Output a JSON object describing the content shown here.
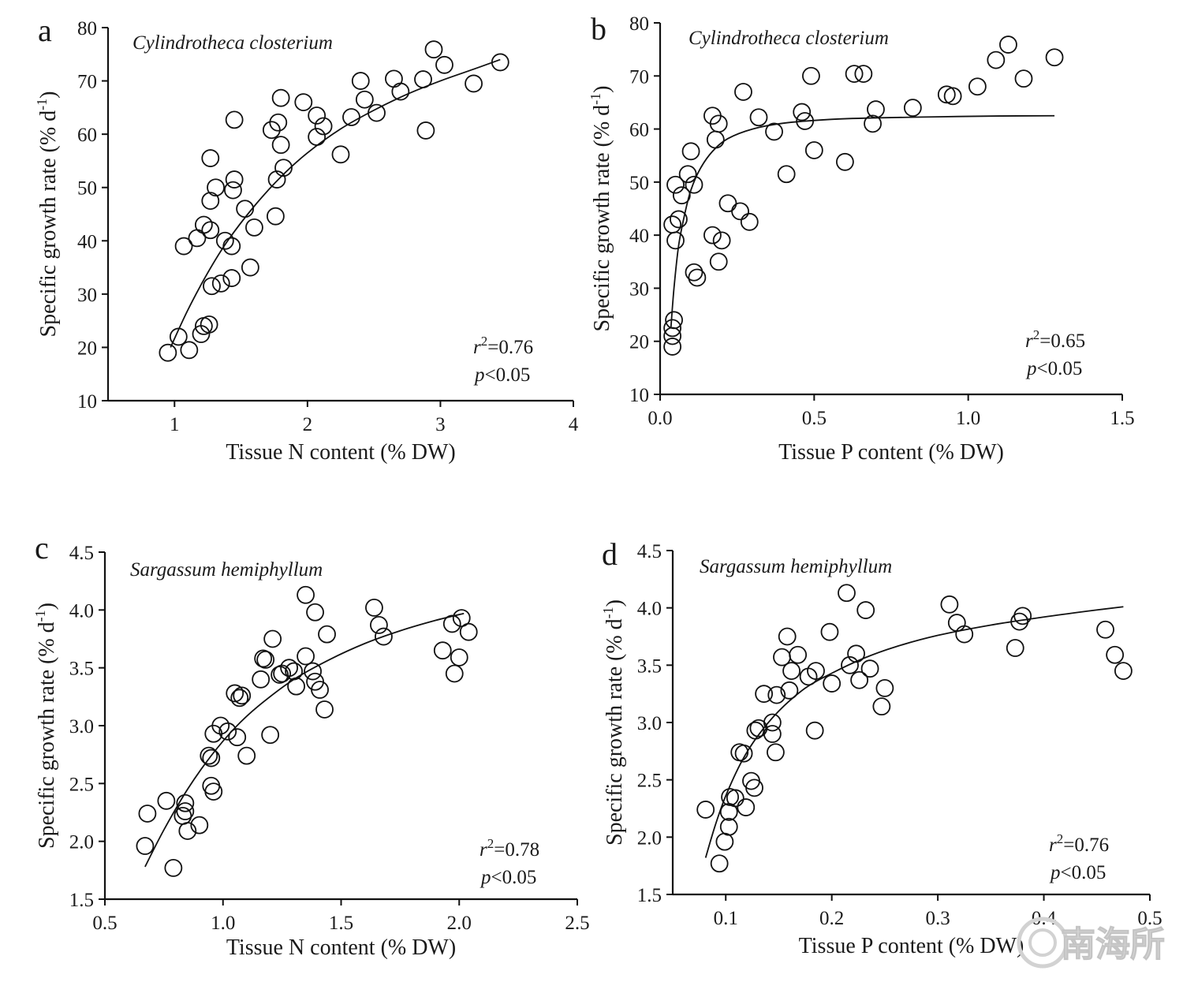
{
  "watermark": "南海所",
  "chart_data": [
    {
      "panel": "a",
      "type": "scatter",
      "title": "Cylindrotheca closterium",
      "xlabel": "Tissue N content (% DW)",
      "ylabel": "Specific growth rate (% d",
      "ylabel_sup": "-1",
      "ylabel_end": ")",
      "xlim": [
        0.5,
        4
      ],
      "ylim": [
        10,
        80
      ],
      "xticks": [
        1,
        2,
        3,
        4
      ],
      "xtick_labels": [
        "1",
        "2",
        "3",
        "4"
      ],
      "yticks": [
        10,
        20,
        30,
        40,
        50,
        60,
        70,
        80
      ],
      "ytick_labels": [
        "10",
        "20",
        "30",
        "40",
        "50",
        "60",
        "70",
        "80"
      ],
      "stats": {
        "r2_label": "r",
        "r2_sup": "2",
        "r2_value": "=0.76",
        "p_label": "p",
        "p_value": "<0.05"
      },
      "fit": {
        "x": [
          0.97,
          1.1,
          1.25,
          1.4,
          1.6,
          1.8,
          2.0,
          2.25,
          2.5,
          2.75,
          3.0,
          3.25,
          3.45
        ],
        "y": [
          20,
          27,
          34,
          40,
          46.5,
          52,
          56.5,
          61,
          64.5,
          67.5,
          70,
          72.2,
          74
        ]
      },
      "points": [
        {
          "x": 0.95,
          "y": 19
        },
        {
          "x": 1.03,
          "y": 22
        },
        {
          "x": 1.11,
          "y": 19.5
        },
        {
          "x": 1.2,
          "y": 22.5
        },
        {
          "x": 1.22,
          "y": 24
        },
        {
          "x": 1.26,
          "y": 24.3
        },
        {
          "x": 1.07,
          "y": 39
        },
        {
          "x": 1.17,
          "y": 40.5
        },
        {
          "x": 1.22,
          "y": 43
        },
        {
          "x": 1.27,
          "y": 42
        },
        {
          "x": 1.28,
          "y": 31.5
        },
        {
          "x": 1.35,
          "y": 32
        },
        {
          "x": 1.43,
          "y": 33
        },
        {
          "x": 1.38,
          "y": 40
        },
        {
          "x": 1.43,
          "y": 39
        },
        {
          "x": 1.27,
          "y": 47.5
        },
        {
          "x": 1.31,
          "y": 50
        },
        {
          "x": 1.44,
          "y": 49.5
        },
        {
          "x": 1.45,
          "y": 51.5
        },
        {
          "x": 1.53,
          "y": 46
        },
        {
          "x": 1.6,
          "y": 42.5
        },
        {
          "x": 1.57,
          "y": 35
        },
        {
          "x": 1.27,
          "y": 55.5
        },
        {
          "x": 1.45,
          "y": 62.7
        },
        {
          "x": 1.76,
          "y": 44.6
        },
        {
          "x": 1.77,
          "y": 51.5
        },
        {
          "x": 1.82,
          "y": 53.7
        },
        {
          "x": 1.8,
          "y": 58
        },
        {
          "x": 1.73,
          "y": 60.8
        },
        {
          "x": 1.78,
          "y": 62.2
        },
        {
          "x": 1.8,
          "y": 66.8
        },
        {
          "x": 1.97,
          "y": 66
        },
        {
          "x": 2.07,
          "y": 59.5
        },
        {
          "x": 2.07,
          "y": 63.5
        },
        {
          "x": 2.12,
          "y": 61.5
        },
        {
          "x": 2.25,
          "y": 56.2
        },
        {
          "x": 2.33,
          "y": 63.2
        },
        {
          "x": 2.4,
          "y": 70
        },
        {
          "x": 2.43,
          "y": 66.5
        },
        {
          "x": 2.52,
          "y": 64
        },
        {
          "x": 2.65,
          "y": 70.4
        },
        {
          "x": 2.7,
          "y": 68
        },
        {
          "x": 2.87,
          "y": 70.3
        },
        {
          "x": 2.89,
          "y": 60.7
        },
        {
          "x": 2.95,
          "y": 75.9
        },
        {
          "x": 3.03,
          "y": 73
        },
        {
          "x": 3.25,
          "y": 69.5
        },
        {
          "x": 3.45,
          "y": 73.5
        }
      ]
    },
    {
      "panel": "b",
      "type": "scatter",
      "title": "Cylindrotheca closterium",
      "xlabel": "Tissue P content (% DW)",
      "ylabel": "Specific growth rate (% d",
      "ylabel_sup": "-1",
      "ylabel_end": ")",
      "xlim": [
        0.0,
        1.5
      ],
      "ylim": [
        10,
        80
      ],
      "xticks": [
        0.0,
        0.5,
        1.0,
        1.5
      ],
      "xtick_labels": [
        "0.0",
        "0.5",
        "1.0",
        "1.5"
      ],
      "yticks": [
        10,
        20,
        30,
        40,
        50,
        60,
        70,
        80
      ],
      "ytick_labels": [
        "10",
        "20",
        "30",
        "40",
        "50",
        "60",
        "70",
        "80"
      ],
      "stats": {
        "r2_label": "r",
        "r2_sup": "2",
        "r2_value": "=0.65",
        "p_label": "p",
        "p_value": "<0.05"
      },
      "fit": {
        "x": [
          0.035,
          0.045,
          0.06,
          0.08,
          0.1,
          0.13,
          0.17,
          0.22,
          0.3,
          0.4,
          0.55,
          0.7,
          0.9,
          1.1,
          1.28
        ],
        "y": [
          22.5,
          30,
          38,
          44,
          48.5,
          52.5,
          55.8,
          58.2,
          60,
          61.1,
          61.8,
          62.1,
          62.3,
          62.45,
          62.5
        ]
      },
      "points": [
        {
          "x": 0.04,
          "y": 19
        },
        {
          "x": 0.04,
          "y": 21
        },
        {
          "x": 0.04,
          "y": 22.5
        },
        {
          "x": 0.045,
          "y": 24
        },
        {
          "x": 0.04,
          "y": 42
        },
        {
          "x": 0.05,
          "y": 39
        },
        {
          "x": 0.06,
          "y": 43
        },
        {
          "x": 0.05,
          "y": 49.5
        },
        {
          "x": 0.07,
          "y": 47.5
        },
        {
          "x": 0.09,
          "y": 51.5
        },
        {
          "x": 0.1,
          "y": 55.8
        },
        {
          "x": 0.11,
          "y": 49.5
        },
        {
          "x": 0.11,
          "y": 33
        },
        {
          "x": 0.12,
          "y": 32
        },
        {
          "x": 0.17,
          "y": 40
        },
        {
          "x": 0.2,
          "y": 39
        },
        {
          "x": 0.19,
          "y": 35
        },
        {
          "x": 0.22,
          "y": 46
        },
        {
          "x": 0.26,
          "y": 44.5
        },
        {
          "x": 0.29,
          "y": 42.5
        },
        {
          "x": 0.17,
          "y": 62.5
        },
        {
          "x": 0.18,
          "y": 58
        },
        {
          "x": 0.19,
          "y": 61
        },
        {
          "x": 0.27,
          "y": 67
        },
        {
          "x": 0.32,
          "y": 62.2
        },
        {
          "x": 0.37,
          "y": 59.5
        },
        {
          "x": 0.41,
          "y": 51.5
        },
        {
          "x": 0.46,
          "y": 63.2
        },
        {
          "x": 0.47,
          "y": 61.5
        },
        {
          "x": 0.49,
          "y": 70
        },
        {
          "x": 0.5,
          "y": 56
        },
        {
          "x": 0.6,
          "y": 53.8
        },
        {
          "x": 0.63,
          "y": 70.4
        },
        {
          "x": 0.66,
          "y": 70.4
        },
        {
          "x": 0.69,
          "y": 61
        },
        {
          "x": 0.7,
          "y": 63.7
        },
        {
          "x": 0.82,
          "y": 64
        },
        {
          "x": 0.93,
          "y": 66.5
        },
        {
          "x": 0.95,
          "y": 66.2
        },
        {
          "x": 1.03,
          "y": 68
        },
        {
          "x": 1.09,
          "y": 73
        },
        {
          "x": 1.13,
          "y": 75.9
        },
        {
          "x": 1.18,
          "y": 69.5
        },
        {
          "x": 1.28,
          "y": 73.5
        }
      ]
    },
    {
      "panel": "c",
      "type": "scatter",
      "title": "Sargassum hemiphyllum",
      "xlabel": "Tissue N content (% DW)",
      "ylabel": "Specific growth rate (% d",
      "ylabel_sup": "-1",
      "ylabel_end": ")",
      "xlim": [
        0.5,
        2.5
      ],
      "ylim": [
        1.5,
        4.5
      ],
      "xticks": [
        0.5,
        1.0,
        1.5,
        2.0,
        2.5
      ],
      "xtick_labels": [
        "0.5",
        "1.0",
        "1.5",
        "2.0",
        "2.5"
      ],
      "yticks": [
        1.5,
        2.0,
        2.5,
        3.0,
        3.5,
        4.0,
        4.5
      ],
      "ytick_labels": [
        "1.5",
        "2.0",
        "2.5",
        "3.0",
        "3.5",
        "4.0",
        "4.5"
      ],
      "stats": {
        "r2_label": "r",
        "r2_sup": "2",
        "r2_value": "=0.78",
        "p_label": "p",
        "p_value": "<0.05"
      },
      "fit": {
        "x": [
          0.67,
          0.75,
          0.85,
          0.95,
          1.05,
          1.15,
          1.3,
          1.45,
          1.6,
          1.75,
          1.9,
          2.02
        ],
        "y": [
          1.78,
          2.1,
          2.45,
          2.74,
          2.98,
          3.17,
          3.4,
          3.57,
          3.71,
          3.82,
          3.91,
          3.97
        ]
      },
      "points": [
        {
          "x": 0.67,
          "y": 1.96
        },
        {
          "x": 0.68,
          "y": 2.24
        },
        {
          "x": 0.76,
          "y": 2.35
        },
        {
          "x": 0.79,
          "y": 1.77
        },
        {
          "x": 0.84,
          "y": 2.33
        },
        {
          "x": 0.83,
          "y": 2.22
        },
        {
          "x": 0.84,
          "y": 2.26
        },
        {
          "x": 0.85,
          "y": 2.09
        },
        {
          "x": 0.9,
          "y": 2.14
        },
        {
          "x": 0.94,
          "y": 2.74
        },
        {
          "x": 0.95,
          "y": 2.72
        },
        {
          "x": 0.95,
          "y": 2.48
        },
        {
          "x": 0.96,
          "y": 2.43
        },
        {
          "x": 0.96,
          "y": 2.93
        },
        {
          "x": 0.99,
          "y": 3.0
        },
        {
          "x": 1.02,
          "y": 2.95
        },
        {
          "x": 1.06,
          "y": 2.9
        },
        {
          "x": 1.1,
          "y": 2.74
        },
        {
          "x": 1.05,
          "y": 3.28
        },
        {
          "x": 1.08,
          "y": 3.26
        },
        {
          "x": 1.07,
          "y": 3.24
        },
        {
          "x": 1.16,
          "y": 3.4
        },
        {
          "x": 1.17,
          "y": 3.58
        },
        {
          "x": 1.18,
          "y": 3.57
        },
        {
          "x": 1.2,
          "y": 2.92
        },
        {
          "x": 1.21,
          "y": 3.75
        },
        {
          "x": 1.24,
          "y": 3.44
        },
        {
          "x": 1.25,
          "y": 3.45
        },
        {
          "x": 1.28,
          "y": 3.5
        },
        {
          "x": 1.3,
          "y": 3.47
        },
        {
          "x": 1.31,
          "y": 3.34
        },
        {
          "x": 1.35,
          "y": 3.6
        },
        {
          "x": 1.38,
          "y": 3.47
        },
        {
          "x": 1.39,
          "y": 3.38
        },
        {
          "x": 1.41,
          "y": 3.31
        },
        {
          "x": 1.43,
          "y": 3.14
        },
        {
          "x": 1.35,
          "y": 4.13
        },
        {
          "x": 1.39,
          "y": 3.98
        },
        {
          "x": 1.44,
          "y": 3.79
        },
        {
          "x": 1.64,
          "y": 4.02
        },
        {
          "x": 1.66,
          "y": 3.87
        },
        {
          "x": 1.68,
          "y": 3.77
        },
        {
          "x": 1.93,
          "y": 3.65
        },
        {
          "x": 1.97,
          "y": 3.88
        },
        {
          "x": 1.98,
          "y": 3.45
        },
        {
          "x": 2.0,
          "y": 3.59
        },
        {
          "x": 2.01,
          "y": 3.93
        },
        {
          "x": 2.04,
          "y": 3.81
        }
      ]
    },
    {
      "panel": "d",
      "type": "scatter",
      "title": "Sargassum hemiphyllum",
      "xlabel": "Tissue P content (% DW)",
      "ylabel": "Specific growth rate (% d",
      "ylabel_sup": "-1",
      "ylabel_end": ")",
      "xlim": [
        0.05,
        0.5
      ],
      "ylim": [
        1.5,
        4.5
      ],
      "xticks": [
        0.1,
        0.2,
        0.3,
        0.4,
        0.5
      ],
      "xtick_labels": [
        "0.1",
        "0.2",
        "0.3",
        "0.4",
        "0.5"
      ],
      "yticks": [
        1.5,
        2.0,
        2.5,
        3.0,
        3.5,
        4.0,
        4.5
      ],
      "ytick_labels": [
        "1.5",
        "2.0",
        "2.5",
        "3.0",
        "3.5",
        "4.0",
        "4.5"
      ],
      "stats": {
        "r2_label": "r",
        "r2_sup": "2",
        "r2_value": "=0.76",
        "p_label": "p",
        "p_value": "<0.05"
      },
      "fit": {
        "x": [
          0.081,
          0.09,
          0.1,
          0.115,
          0.13,
          0.15,
          0.175,
          0.2,
          0.23,
          0.26,
          0.3,
          0.35,
          0.4,
          0.44,
          0.475
        ],
        "y": [
          1.82,
          2.1,
          2.36,
          2.66,
          2.88,
          3.1,
          3.3,
          3.43,
          3.56,
          3.66,
          3.76,
          3.85,
          3.92,
          3.97,
          4.01
        ]
      },
      "points": [
        {
          "x": 0.081,
          "y": 2.24
        },
        {
          "x": 0.094,
          "y": 1.77
        },
        {
          "x": 0.099,
          "y": 1.96
        },
        {
          "x": 0.103,
          "y": 2.09
        },
        {
          "x": 0.103,
          "y": 2.22
        },
        {
          "x": 0.104,
          "y": 2.35
        },
        {
          "x": 0.109,
          "y": 2.34
        },
        {
          "x": 0.119,
          "y": 2.26
        },
        {
          "x": 0.113,
          "y": 2.74
        },
        {
          "x": 0.117,
          "y": 2.73
        },
        {
          "x": 0.124,
          "y": 2.49
        },
        {
          "x": 0.127,
          "y": 2.43
        },
        {
          "x": 0.128,
          "y": 2.93
        },
        {
          "x": 0.131,
          "y": 2.95
        },
        {
          "x": 0.136,
          "y": 3.25
        },
        {
          "x": 0.144,
          "y": 3.0
        },
        {
          "x": 0.144,
          "y": 2.9
        },
        {
          "x": 0.148,
          "y": 3.24
        },
        {
          "x": 0.147,
          "y": 2.74
        },
        {
          "x": 0.153,
          "y": 3.57
        },
        {
          "x": 0.158,
          "y": 3.75
        },
        {
          "x": 0.16,
          "y": 3.28
        },
        {
          "x": 0.162,
          "y": 3.45
        },
        {
          "x": 0.168,
          "y": 3.59
        },
        {
          "x": 0.178,
          "y": 3.4
        },
        {
          "x": 0.185,
          "y": 3.45
        },
        {
          "x": 0.184,
          "y": 2.93
        },
        {
          "x": 0.198,
          "y": 3.79
        },
        {
          "x": 0.2,
          "y": 3.34
        },
        {
          "x": 0.214,
          "y": 4.13
        },
        {
          "x": 0.217,
          "y": 3.5
        },
        {
          "x": 0.223,
          "y": 3.6
        },
        {
          "x": 0.226,
          "y": 3.37
        },
        {
          "x": 0.232,
          "y": 3.98
        },
        {
          "x": 0.236,
          "y": 3.47
        },
        {
          "x": 0.247,
          "y": 3.14
        },
        {
          "x": 0.25,
          "y": 3.3
        },
        {
          "x": 0.311,
          "y": 4.03
        },
        {
          "x": 0.318,
          "y": 3.87
        },
        {
          "x": 0.325,
          "y": 3.77
        },
        {
          "x": 0.373,
          "y": 3.65
        },
        {
          "x": 0.377,
          "y": 3.88
        },
        {
          "x": 0.38,
          "y": 3.93
        },
        {
          "x": 0.458,
          "y": 3.81
        },
        {
          "x": 0.467,
          "y": 3.59
        },
        {
          "x": 0.475,
          "y": 3.45
        }
      ]
    }
  ]
}
